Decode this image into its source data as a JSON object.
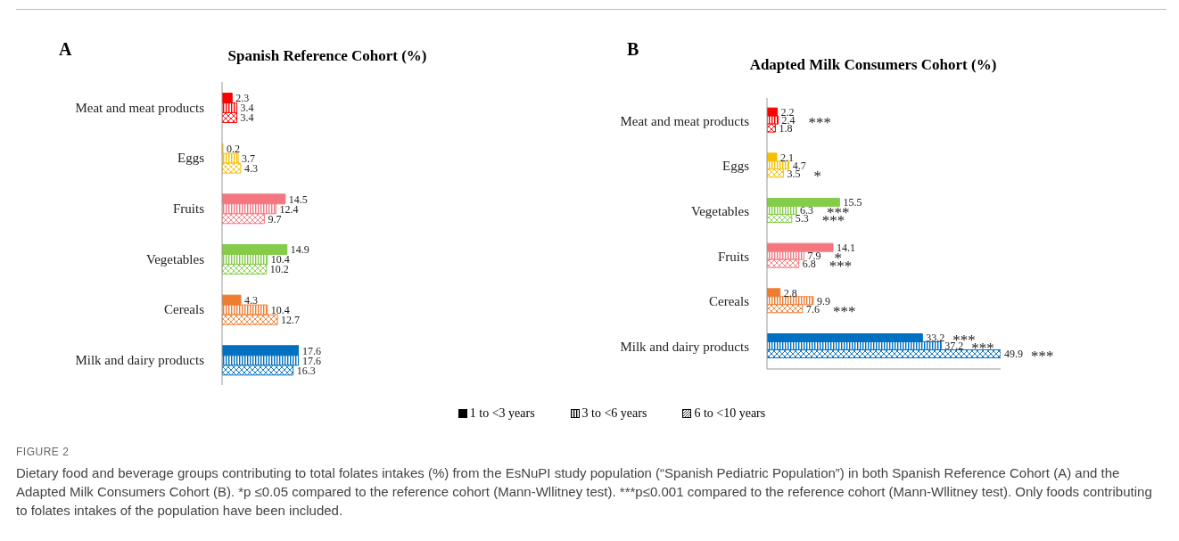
{
  "chart_data": [
    {
      "type": "bar",
      "orientation": "horizontal",
      "title": "Spanish Reference Cohort (%)",
      "categories": [
        "Meat and meat products",
        "Eggs",
        "Fruits",
        "Vegetables",
        "Cereals",
        "Milk and dairy products"
      ],
      "series": [
        {
          "name": "1 to <3 years",
          "colors": [
            "#ff0000",
            "#f5c000",
            "#f4777f",
            "#84cc4a",
            "#ed7d31",
            "#0070c0"
          ],
          "values": [
            2.3,
            0.2,
            14.5,
            14.9,
            4.3,
            17.6
          ]
        },
        {
          "name": "3 to <6 years",
          "colors": [
            "#ff0000",
            "#f5c000",
            "#f4777f",
            "#84cc4a",
            "#ed7d31",
            "#0070c0"
          ],
          "values": [
            3.4,
            3.7,
            12.4,
            10.4,
            10.4,
            17.6
          ]
        },
        {
          "name": "6 to <10 years",
          "colors": [
            "#ff0000",
            "#f5c000",
            "#f4777f",
            "#84cc4a",
            "#ed7d31",
            "#0070c0"
          ],
          "values": [
            3.4,
            4.3,
            9.7,
            10.2,
            12.7,
            16.3
          ]
        }
      ],
      "data_labels": true,
      "legend": "bottom",
      "annotations": [
        "A",
        "FIGURE 2",
        "Dietary food and beverage groups contributing to total folates intakes (%) from the EsNuPI study population (“Spanish Pediatric Population”) in both Spanish Reference Cohort (A) and the Adapted Milk Consumers Cohort (B). *p ≤0.05 compared to the reference cohort (Mann-Wllitney test). ***p≤0.001 compared to the reference cohort (Mann-Wllitney test). Only foods contributing to folates intakes of the population have been included."
      ]
    },
    {
      "type": "bar",
      "orientation": "horizontal",
      "title": "Adapted Milk Consumers Cohort (%)",
      "categories": [
        "Meat and meat products",
        "Eggs",
        "Vegetables",
        "Fruits",
        "Cereals",
        "Milk and dairy products"
      ],
      "series": [
        {
          "colors": [
            "#ff0000",
            "#f5c000",
            "#84cc4a",
            "#f4777f",
            "#ed7d31",
            "#0070c0"
          ],
          "values": [
            2.2,
            2.1,
            15.5,
            14.1,
            2.8,
            33.2
          ]
        },
        {
          "colors": [
            "#ff0000",
            "#f5c000",
            "#84cc4a",
            "#f4777f",
            "#ed7d31",
            "#0070c0"
          ],
          "values": [
            2.4,
            4.7,
            6.3,
            7.9,
            9.9,
            37.2
          ]
        },
        {
          "colors": [
            "#ff0000",
            "#f5c000",
            "#84cc4a",
            "#f4777f",
            "#ed7d31",
            "#0070c0"
          ],
          "values": [
            1.8,
            3.5,
            5.3,
            6.8,
            7.6,
            49.9
          ]
        }
      ],
      "data_labels": true,
      "annotations": [
        "B",
        {
          "text": "***",
          "x": 2.4,
          "y": "Meat and meat products"
        },
        {
          "text": "*",
          "x": 3.5,
          "y": "Eggs"
        },
        {
          "text": "***",
          "x": 6.3,
          "y": "Vegetables"
        },
        {
          "text": "***",
          "x": 5.3,
          "y": "Vegetables"
        },
        {
          "text": "*",
          "x": 7.9,
          "y": "Fruits"
        },
        {
          "text": "***",
          "x": 6.8,
          "y": "Fruits"
        },
        {
          "text": "***",
          "x": 7.6,
          "y": "Cereals"
        },
        {
          "text": "***",
          "x": 33.2,
          "y": "Milk and dairy products"
        },
        {
          "text": "***",
          "x": 37.2,
          "y": "Milk and dairy products"
        },
        {
          "text": "***",
          "x": 49.9,
          "y": "Milk and dairy products"
        }
      ]
    }
  ]
}
